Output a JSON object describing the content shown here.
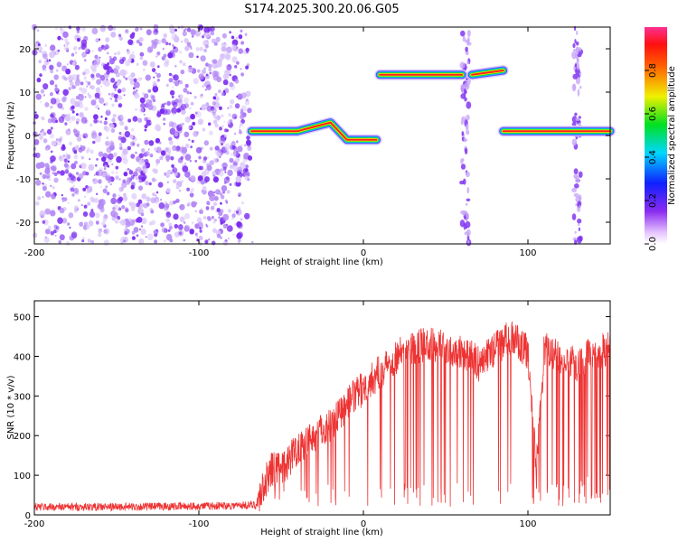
{
  "title": "S174.2025.300.20.06.G05",
  "colors": {
    "snr_line": "#ee3333",
    "spectrogram_noise": "#7b2cf0",
    "ridge_peak": "#ff2020"
  },
  "chart_data": [
    {
      "type": "heatmap",
      "name": "spectrogram",
      "xlabel": "Height of straight line (km)",
      "ylabel": "Frequency (Hz)",
      "xlim": [
        -200,
        150
      ],
      "ylim": [
        -25,
        25
      ],
      "x_ticks": [
        -200,
        -100,
        0,
        100
      ],
      "y_ticks": [
        -20,
        -10,
        0,
        10,
        20
      ],
      "colorbar": {
        "label": "Normalized spectral amplitude",
        "range": [
          0,
          1
        ],
        "ticks": [
          0.0,
          0.2,
          0.4,
          0.6,
          0.8
        ]
      },
      "noise_region_x": [
        -200,
        -70
      ],
      "ridge_segments": [
        {
          "x": [
            -68,
            -50,
            -40,
            -30,
            -20,
            -10,
            0,
            8
          ],
          "freq": [
            1,
            1,
            1,
            2,
            3,
            -1,
            -1,
            -1
          ]
        },
        {
          "x": [
            10,
            60
          ],
          "freq": [
            14,
            14
          ]
        },
        {
          "x": [
            66,
            85
          ],
          "freq": [
            14,
            15
          ]
        },
        {
          "x": [
            85,
            150
          ],
          "freq": [
            1,
            1
          ]
        }
      ],
      "vertical_streak_x": [
        62,
        130
      ]
    },
    {
      "type": "line",
      "name": "snr",
      "xlabel": "Height of straight line (km)",
      "ylabel": "SNR (10 * v/v)",
      "xlim": [
        -200,
        150
      ],
      "ylim": [
        0,
        540
      ],
      "x_ticks": [
        -200,
        -100,
        0,
        100
      ],
      "y_ticks": [
        0,
        100,
        200,
        300,
        400,
        500
      ],
      "series": [
        {
          "name": "SNR",
          "x": [
            -200,
            -150,
            -100,
            -65,
            -60,
            -55,
            -50,
            -40,
            -30,
            -20,
            -10,
            0,
            10,
            20,
            30,
            40,
            50,
            60,
            65,
            70,
            80,
            90,
            100,
            105,
            110,
            120,
            130,
            140,
            150
          ],
          "values": [
            20,
            20,
            22,
            25,
            80,
            120,
            110,
            170,
            200,
            230,
            280,
            320,
            360,
            400,
            420,
            430,
            420,
            415,
            400,
            380,
            420,
            450,
            410,
            120,
            420,
            400,
            380,
            410,
            420
          ]
        }
      ]
    }
  ]
}
